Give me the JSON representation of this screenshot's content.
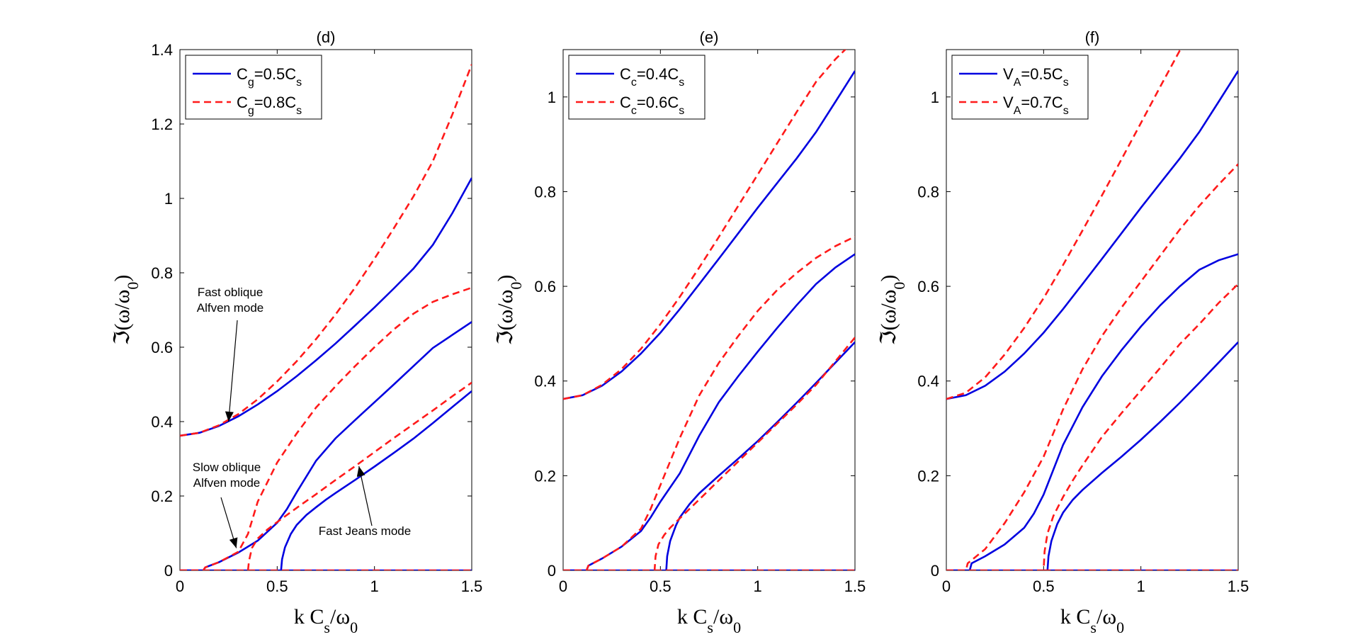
{
  "chart_data": [
    {
      "type": "line",
      "title": "(d)",
      "xlabel_main": "k C",
      "xlabel_sub": "s",
      "xlabel_tail": "/ω",
      "xlabel_tail_sub": "0",
      "ylabel_main": "ℑ(ω/ω",
      "ylabel_sub": "0",
      "ylabel_tail": ")",
      "xlim": [
        0,
        1.5
      ],
      "ylim": [
        0,
        1.4
      ],
      "xticks": [
        0,
        0.5,
        1,
        1.5
      ],
      "xtick_labels": [
        "0",
        "0.5",
        "1",
        "1.5"
      ],
      "yticks": [
        0,
        0.2,
        0.4,
        0.6,
        0.8,
        1,
        1.2,
        1.4
      ],
      "ytick_labels": [
        "0",
        "0.2",
        "0.4",
        "0.6",
        "0.8",
        "1",
        "1.2",
        "1.4"
      ],
      "legend_placement": "top-left",
      "legend": [
        {
          "main": "C",
          "sub": "g",
          "rest": "=0.5C",
          "sub2": "s",
          "style": "solid",
          "color": "#0000e0"
        },
        {
          "main": "C",
          "sub": "g",
          "rest": "=0.8C",
          "sub2": "s",
          "style": "dashed",
          "color": "#ff1a1a"
        }
      ],
      "annotations": [
        {
          "lines": [
            "Fast oblique",
            "Alfven mode"
          ],
          "target": [
            0.25,
            0.4
          ]
        },
        {
          "lines": [
            "Slow oblique",
            "Alfven mode"
          ],
          "target": [
            0.29,
            0.06
          ]
        },
        {
          "lines": [
            "Fast Jeans mode"
          ],
          "target": [
            0.92,
            0.28
          ]
        }
      ],
      "series": [
        {
          "color": "#0000e0",
          "style": "solid",
          "x": [
            0,
            0.1,
            0.2,
            0.3,
            0.4,
            0.5,
            0.6,
            0.7,
            0.8,
            0.9,
            1.0,
            1.1,
            1.2,
            1.3,
            1.4,
            1.5
          ],
          "y": [
            0.362,
            0.37,
            0.388,
            0.414,
            0.446,
            0.482,
            0.522,
            0.565,
            0.61,
            0.658,
            0.707,
            0.758,
            0.811,
            0.875,
            0.96,
            1.055
          ]
        },
        {
          "color": "#0000e0",
          "style": "solid",
          "x": [
            0,
            0.12,
            0.13,
            0.2,
            0.3,
            0.4,
            0.5,
            0.55,
            0.6,
            0.7,
            0.8,
            0.9,
            1.0,
            1.1,
            1.2,
            1.3,
            1.4,
            1.5
          ],
          "y": [
            0,
            0,
            0.008,
            0.022,
            0.048,
            0.08,
            0.128,
            0.165,
            0.21,
            0.295,
            0.355,
            0.404,
            0.452,
            0.5,
            0.549,
            0.598,
            0.633,
            0.668
          ]
        },
        {
          "color": "#0000e0",
          "style": "solid",
          "x": [
            0,
            0.52,
            0.525,
            0.54,
            0.57,
            0.6,
            0.65,
            0.7,
            0.75,
            0.8,
            0.9,
            1.0,
            1.1,
            1.2,
            1.3,
            1.4,
            1.5
          ],
          "y": [
            0,
            0,
            0.03,
            0.062,
            0.098,
            0.122,
            0.149,
            0.17,
            0.19,
            0.208,
            0.243,
            0.279,
            0.316,
            0.354,
            0.396,
            0.439,
            0.482
          ]
        },
        {
          "color": "#0000e0",
          "style": "solid",
          "x": [
            0.52,
            1.5
          ],
          "y": [
            0,
            0
          ]
        },
        {
          "color": "#ff1a1a",
          "style": "dashed",
          "x": [
            0,
            0.1,
            0.2,
            0.3,
            0.4,
            0.5,
            0.6,
            0.7,
            0.8,
            0.9,
            1.0,
            1.1,
            1.2,
            1.3,
            1.4,
            1.5
          ],
          "y": [
            0.362,
            0.37,
            0.39,
            0.42,
            0.46,
            0.508,
            0.562,
            0.622,
            0.688,
            0.76,
            0.838,
            0.92,
            1.005,
            1.1,
            1.225,
            1.36
          ]
        },
        {
          "color": "#ff1a1a",
          "style": "dashed",
          "x": [
            0,
            0.12,
            0.13,
            0.2,
            0.3,
            0.35,
            0.4,
            0.5,
            0.6,
            0.7,
            0.8,
            0.9,
            1.0,
            1.1,
            1.2,
            1.3,
            1.4,
            1.5
          ],
          "y": [
            0,
            0,
            0.008,
            0.022,
            0.05,
            0.098,
            0.185,
            0.29,
            0.368,
            0.438,
            0.495,
            0.549,
            0.6,
            0.648,
            0.69,
            0.722,
            0.742,
            0.76
          ]
        },
        {
          "color": "#ff1a1a",
          "style": "dashed",
          "x": [
            0,
            0.35,
            0.355,
            0.37,
            0.4,
            0.45,
            0.5,
            0.6,
            0.7,
            0.8,
            0.9,
            1.0,
            1.1,
            1.2,
            1.3,
            1.4,
            1.5
          ],
          "y": [
            0,
            0,
            0.025,
            0.06,
            0.086,
            0.11,
            0.13,
            0.168,
            0.205,
            0.243,
            0.28,
            0.318,
            0.356,
            0.393,
            0.43,
            0.468,
            0.505
          ]
        },
        {
          "color": "#ff1a1a",
          "style": "dashed",
          "x": [
            0.35,
            1.5
          ],
          "y": [
            0,
            0
          ]
        }
      ]
    },
    {
      "type": "line",
      "title": "(e)",
      "xlabel_main": "k C",
      "xlabel_sub": "s",
      "xlabel_tail": "/ω",
      "xlabel_tail_sub": "0",
      "ylabel_main": "ℑ(ω/ω",
      "ylabel_sub": "0",
      "ylabel_tail": ")",
      "xlim": [
        0,
        1.5
      ],
      "ylim": [
        0,
        1.1
      ],
      "xticks": [
        0,
        0.5,
        1,
        1.5
      ],
      "xtick_labels": [
        "0",
        "0.5",
        "1",
        "1.5"
      ],
      "yticks": [
        0,
        0.2,
        0.4,
        0.6,
        0.8,
        1
      ],
      "ytick_labels": [
        "0",
        "0.2",
        "0.4",
        "0.6",
        "0.8",
        "1"
      ],
      "legend_placement": "top-left",
      "legend": [
        {
          "main": "C",
          "sub": "c",
          "rest": "=0.4C",
          "sub2": "s",
          "style": "solid",
          "color": "#0000e0"
        },
        {
          "main": "C",
          "sub": "c",
          "rest": "=0.6C",
          "sub2": "s",
          "style": "dashed",
          "color": "#ff1a1a"
        }
      ],
      "annotations": [],
      "series": [
        {
          "color": "#0000e0",
          "style": "solid",
          "x": [
            0,
            0.1,
            0.2,
            0.3,
            0.4,
            0.5,
            0.6,
            0.7,
            0.8,
            0.9,
            1.0,
            1.1,
            1.2,
            1.3,
            1.4,
            1.5
          ],
          "y": [
            0.362,
            0.37,
            0.39,
            0.42,
            0.458,
            0.502,
            0.552,
            0.605,
            0.658,
            0.712,
            0.766,
            0.818,
            0.87,
            0.926,
            0.99,
            1.055
          ]
        },
        {
          "color": "#0000e0",
          "style": "solid",
          "x": [
            0,
            0.12,
            0.13,
            0.2,
            0.3,
            0.4,
            0.45,
            0.5,
            0.6,
            0.7,
            0.8,
            0.9,
            1.0,
            1.1,
            1.2,
            1.3,
            1.4,
            1.5
          ],
          "y": [
            0,
            0,
            0.01,
            0.025,
            0.05,
            0.083,
            0.112,
            0.145,
            0.205,
            0.285,
            0.355,
            0.41,
            0.462,
            0.512,
            0.56,
            0.605,
            0.64,
            0.668
          ]
        },
        {
          "color": "#0000e0",
          "style": "solid",
          "x": [
            0,
            0.53,
            0.535,
            0.55,
            0.58,
            0.6,
            0.65,
            0.7,
            0.8,
            0.9,
            1.0,
            1.1,
            1.2,
            1.3,
            1.4,
            1.5
          ],
          "y": [
            0,
            0,
            0.03,
            0.062,
            0.095,
            0.112,
            0.14,
            0.163,
            0.2,
            0.236,
            0.273,
            0.313,
            0.354,
            0.396,
            0.439,
            0.482
          ]
        },
        {
          "color": "#0000e0",
          "style": "solid",
          "x": [
            0.53,
            1.5
          ],
          "y": [
            0,
            0
          ]
        },
        {
          "color": "#ff1a1a",
          "style": "dashed",
          "x": [
            0,
            0.1,
            0.2,
            0.3,
            0.4,
            0.5,
            0.6,
            0.7,
            0.8,
            0.9,
            1.0,
            1.1,
            1.2,
            1.3,
            1.4,
            1.5
          ],
          "y": [
            0.362,
            0.37,
            0.392,
            0.425,
            0.468,
            0.52,
            0.578,
            0.64,
            0.704,
            0.77,
            0.836,
            0.902,
            0.968,
            1.032,
            1.08,
            1.12
          ]
        },
        {
          "color": "#ff1a1a",
          "style": "dashed",
          "x": [
            0,
            0.12,
            0.13,
            0.2,
            0.3,
            0.4,
            0.45,
            0.5,
            0.6,
            0.7,
            0.8,
            0.9,
            1.0,
            1.1,
            1.2,
            1.3,
            1.4,
            1.5
          ],
          "y": [
            0,
            0,
            0.01,
            0.025,
            0.05,
            0.088,
            0.13,
            0.18,
            0.28,
            0.37,
            0.438,
            0.495,
            0.548,
            0.592,
            0.628,
            0.66,
            0.685,
            0.705
          ]
        },
        {
          "color": "#ff1a1a",
          "style": "dashed",
          "x": [
            0,
            0.47,
            0.475,
            0.49,
            0.52,
            0.55,
            0.6,
            0.7,
            0.8,
            0.9,
            1.0,
            1.1,
            1.2,
            1.3,
            1.4,
            1.5
          ],
          "y": [
            0,
            0,
            0.03,
            0.055,
            0.075,
            0.09,
            0.11,
            0.15,
            0.19,
            0.23,
            0.27,
            0.31,
            0.35,
            0.392,
            0.442,
            0.492
          ]
        },
        {
          "color": "#ff1a1a",
          "style": "dashed",
          "x": [
            0.47,
            1.5
          ],
          "y": [
            0,
            0
          ]
        }
      ]
    },
    {
      "type": "line",
      "title": "(f)",
      "xlabel_main": "k C",
      "xlabel_sub": "s",
      "xlabel_tail": "/ω",
      "xlabel_tail_sub": "0",
      "ylabel_main": "ℑ(ω/ω",
      "ylabel_sub": "0",
      "ylabel_tail": ")",
      "xlim": [
        0,
        1.5
      ],
      "ylim": [
        0,
        1.1
      ],
      "xticks": [
        0,
        0.5,
        1,
        1.5
      ],
      "xtick_labels": [
        "0",
        "0.5",
        "1",
        "1.5"
      ],
      "yticks": [
        0,
        0.2,
        0.4,
        0.6,
        0.8,
        1
      ],
      "ytick_labels": [
        "0",
        "0.2",
        "0.4",
        "0.6",
        "0.8",
        "1"
      ],
      "legend_placement": "top-left",
      "legend": [
        {
          "main": "V",
          "sub": "A",
          "rest": "=0.5C",
          "sub2": "s",
          "style": "solid",
          "color": "#0000e0"
        },
        {
          "main": "V",
          "sub": "A",
          "rest": "=0.7C",
          "sub2": "s",
          "style": "dashed",
          "color": "#ff1a1a"
        }
      ],
      "annotations": [],
      "series": [
        {
          "color": "#0000e0",
          "style": "solid",
          "x": [
            0,
            0.1,
            0.2,
            0.3,
            0.4,
            0.5,
            0.6,
            0.7,
            0.8,
            0.9,
            1.0,
            1.1,
            1.2,
            1.3,
            1.4,
            1.5
          ],
          "y": [
            0.362,
            0.37,
            0.39,
            0.42,
            0.458,
            0.502,
            0.552,
            0.605,
            0.658,
            0.712,
            0.766,
            0.818,
            0.87,
            0.926,
            0.99,
            1.055
          ]
        },
        {
          "color": "#0000e0",
          "style": "solid",
          "x": [
            0,
            0.12,
            0.13,
            0.2,
            0.3,
            0.4,
            0.45,
            0.5,
            0.6,
            0.7,
            0.8,
            0.9,
            1.0,
            1.1,
            1.2,
            1.3,
            1.4,
            1.5
          ],
          "y": [
            0,
            0,
            0.015,
            0.03,
            0.055,
            0.09,
            0.12,
            0.16,
            0.265,
            0.345,
            0.41,
            0.465,
            0.515,
            0.56,
            0.6,
            0.635,
            0.655,
            0.668
          ]
        },
        {
          "color": "#0000e0",
          "style": "solid",
          "x": [
            0,
            0.52,
            0.525,
            0.54,
            0.57,
            0.6,
            0.65,
            0.7,
            0.8,
            0.9,
            1.0,
            1.1,
            1.2,
            1.3,
            1.4,
            1.5
          ],
          "y": [
            0,
            0,
            0.03,
            0.062,
            0.098,
            0.122,
            0.149,
            0.17,
            0.206,
            0.24,
            0.276,
            0.314,
            0.354,
            0.396,
            0.439,
            0.482
          ]
        },
        {
          "color": "#0000e0",
          "style": "solid",
          "x": [
            0.52,
            1.5
          ],
          "y": [
            0,
            0
          ]
        },
        {
          "color": "#ff1a1a",
          "style": "dashed",
          "x": [
            0,
            0.1,
            0.2,
            0.3,
            0.4,
            0.5,
            0.6,
            0.7,
            0.8,
            0.9,
            1.0,
            1.1,
            1.2,
            1.3,
            1.4,
            1.5
          ],
          "y": [
            0.362,
            0.375,
            0.408,
            0.456,
            0.512,
            0.575,
            0.645,
            0.718,
            0.792,
            0.868,
            0.945,
            1.022,
            1.098,
            1.15,
            1.18,
            1.2
          ]
        },
        {
          "color": "#ff1a1a",
          "style": "dashed",
          "x": [
            0,
            0.1,
            0.11,
            0.2,
            0.3,
            0.4,
            0.5,
            0.55,
            0.6,
            0.7,
            0.8,
            0.9,
            1.0,
            1.1,
            1.2,
            1.3,
            1.4,
            1.5
          ],
          "y": [
            0,
            0,
            0.015,
            0.045,
            0.1,
            0.165,
            0.24,
            0.29,
            0.34,
            0.425,
            0.495,
            0.555,
            0.61,
            0.665,
            0.72,
            0.77,
            0.815,
            0.858
          ]
        },
        {
          "color": "#ff1a1a",
          "style": "dashed",
          "x": [
            0,
            0.5,
            0.505,
            0.52,
            0.55,
            0.6,
            0.65,
            0.7,
            0.8,
            0.9,
            1.0,
            1.1,
            1.2,
            1.3,
            1.4,
            1.5
          ],
          "y": [
            0,
            0,
            0.04,
            0.078,
            0.115,
            0.155,
            0.19,
            0.222,
            0.282,
            0.332,
            0.38,
            0.428,
            0.478,
            0.52,
            0.565,
            0.605
          ]
        },
        {
          "color": "#ff1a1a",
          "style": "dashed",
          "x": [
            0.5,
            1.5
          ],
          "y": [
            0,
            0
          ]
        }
      ]
    }
  ]
}
